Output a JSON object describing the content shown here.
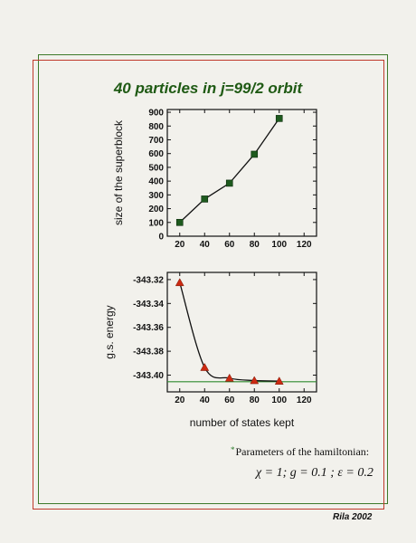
{
  "title": "40 particles in j=99/2 orbit",
  "params": {
    "star": "*",
    "title": "Parameters of the hamiltonian:",
    "values": "χ = 1;  g = 0.1 ; ε = 0.2"
  },
  "footer": "Rila 2002",
  "colors": {
    "frame_green": "#3d7a2a",
    "frame_red": "#c0392b",
    "title": "#1f5a14",
    "square_marker": "#1e5a1e",
    "triangle_marker": "#cc2a12",
    "hline": "#2e8b2e"
  },
  "chart_data": [
    {
      "type": "line",
      "marker": "square",
      "xlabel": "",
      "ylabel": "size of the superblock",
      "xlim": [
        10,
        130
      ],
      "ylim": [
        0,
        920
      ],
      "xticks": [
        20,
        40,
        60,
        80,
        100,
        120
      ],
      "yticks": [
        0,
        100,
        200,
        300,
        400,
        500,
        600,
        700,
        800,
        900
      ],
      "x": [
        20,
        40,
        60,
        80,
        100
      ],
      "y": [
        100,
        270,
        385,
        595,
        855
      ]
    },
    {
      "type": "line",
      "marker": "triangle",
      "xlabel": "number of states kept",
      "ylabel": "g.s. energy",
      "xlim": [
        10,
        130
      ],
      "ylim": [
        -343.414,
        -343.314
      ],
      "xticks": [
        20,
        40,
        60,
        80,
        100,
        120
      ],
      "yticks": [
        -343.32,
        -343.34,
        -343.36,
        -343.38,
        -343.4
      ],
      "x": [
        20,
        40,
        60,
        80,
        100
      ],
      "y": [
        -343.3225,
        -343.3935,
        -343.4025,
        -343.4045,
        -343.405
      ],
      "reference_line": -343.4055
    }
  ]
}
